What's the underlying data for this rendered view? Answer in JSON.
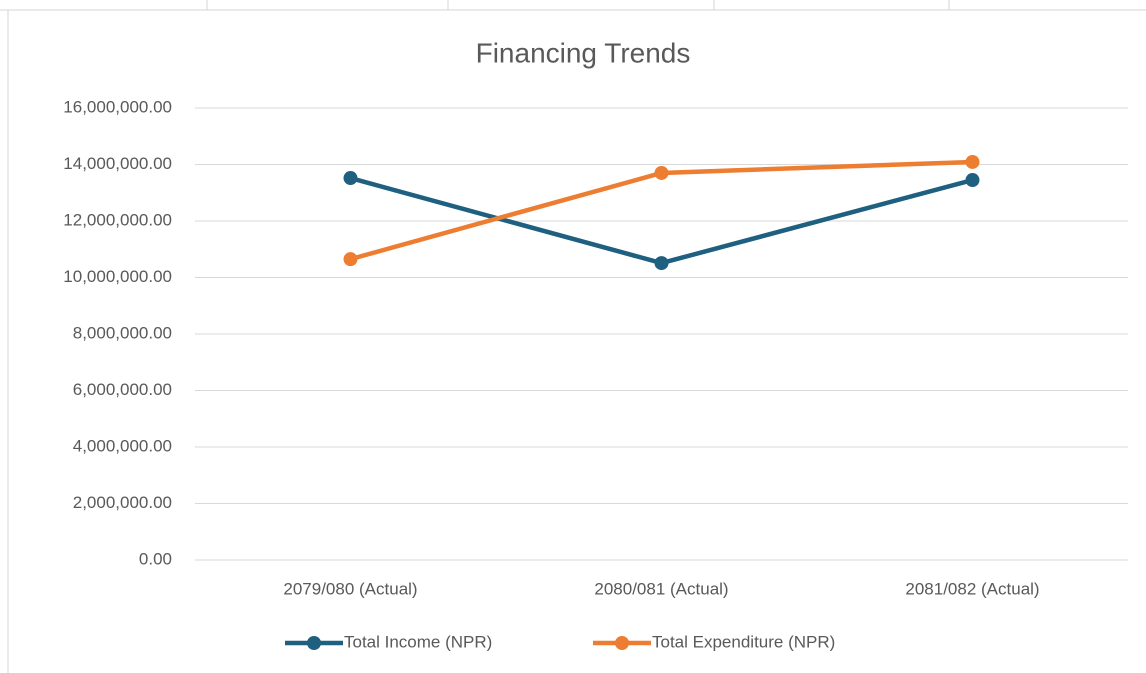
{
  "chart_data": {
    "type": "line",
    "title": "Financing Trends",
    "categories": [
      "2079/080 (Actual)",
      "2080/081 (Actual)",
      "2081/082 (Actual)"
    ],
    "series": [
      {
        "name": "Total Income (NPR)",
        "color": "#1f5f7f",
        "values": [
          13520000,
          10510000,
          13450000
        ]
      },
      {
        "name": "Total Expenditure (NPR)",
        "color": "#ed7d31",
        "values": [
          10650000,
          13700000,
          14090000
        ]
      }
    ],
    "ylim": [
      0,
      16000000
    ],
    "yticks": [
      {
        "value": 0,
        "label": "0.00"
      },
      {
        "value": 2000000,
        "label": "2,000,000.00"
      },
      {
        "value": 4000000,
        "label": "4,000,000.00"
      },
      {
        "value": 6000000,
        "label": "6,000,000.00"
      },
      {
        "value": 8000000,
        "label": "8,000,000.00"
      },
      {
        "value": 10000000,
        "label": "10,000,000.00"
      },
      {
        "value": 12000000,
        "label": "12,000,000.00"
      },
      {
        "value": 14000000,
        "label": "14,000,000.00"
      },
      {
        "value": 16000000,
        "label": "16,000,000.00"
      }
    ],
    "grid": true,
    "legend": "bottom"
  }
}
